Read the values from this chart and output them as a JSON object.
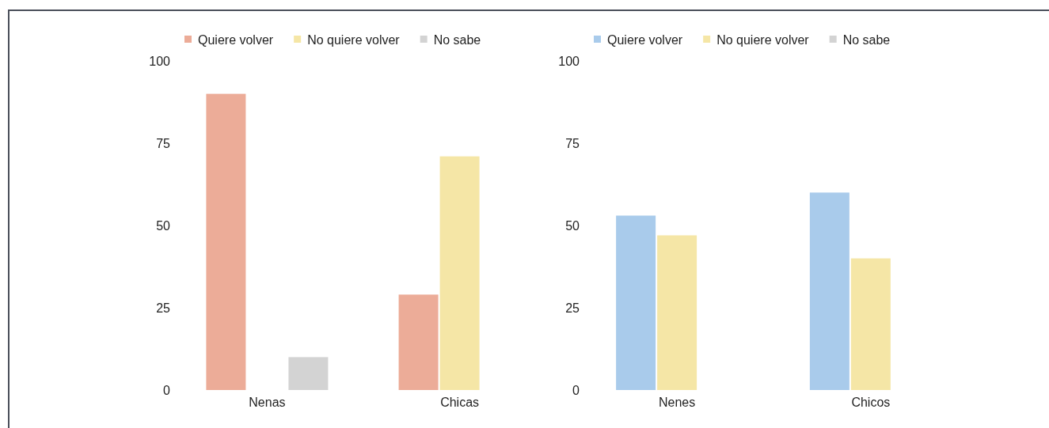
{
  "chart_data": [
    {
      "type": "bar",
      "categories": [
        "Nenas",
        "Chicas"
      ],
      "series": [
        {
          "name": "Quiere volver",
          "color": "#ecac98",
          "values": [
            90,
            29
          ]
        },
        {
          "name": "No quiere volver",
          "color": "#f5e6a6",
          "values": [
            0,
            71
          ]
        },
        {
          "name": "No sabe",
          "color": "#d3d3d3",
          "values": [
            10,
            0
          ]
        }
      ],
      "ylim": [
        0,
        100
      ],
      "yticks": [
        0,
        25,
        50,
        75,
        100
      ],
      "legend": "top",
      "grid": false
    },
    {
      "type": "bar",
      "categories": [
        "Nenes",
        "Chicos"
      ],
      "series": [
        {
          "name": "Quiere volver",
          "color": "#a9cbeb",
          "values": [
            53,
            60
          ]
        },
        {
          "name": "No quiere volver",
          "color": "#f5e6a6",
          "values": [
            47,
            40
          ]
        },
        {
          "name": "No sabe",
          "color": "#d3d3d3",
          "values": [
            0,
            0
          ]
        }
      ],
      "ylim": [
        0,
        100
      ],
      "yticks": [
        0,
        25,
        50,
        75,
        100
      ],
      "legend": "top",
      "grid": false
    }
  ]
}
